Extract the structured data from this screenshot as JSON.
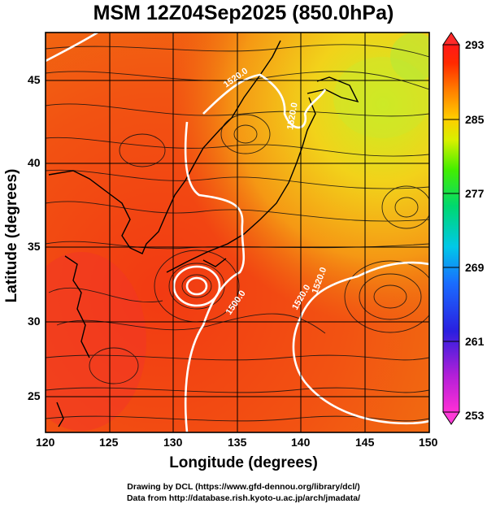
{
  "title": "MSM 12Z04Sep2025 (850.0hPa)",
  "axes": {
    "xlabel": "Longitude (degrees)",
    "ylabel": "Latitude  (degrees)",
    "xlim": [
      120,
      150
    ],
    "ylim": [
      22.4,
      47.6
    ],
    "xticks": [
      "120",
      "125",
      "130",
      "135",
      "140",
      "145",
      "150"
    ],
    "yticks": [
      "25",
      "30",
      "35",
      "40",
      "45"
    ]
  },
  "colorbar": {
    "range": [
      253,
      293
    ],
    "labels": [
      "293",
      "285",
      "277",
      "269",
      "261",
      "253"
    ],
    "stops": [
      "#ff2fd6",
      "#b21fd8",
      "#2a1fe0",
      "#1a6cff",
      "#00c8e8",
      "#00d870",
      "#44ee00",
      "#d8f000",
      "#ffcc00",
      "#ff7a00",
      "#ff2a00",
      "#ff1818"
    ]
  },
  "contour_labels": [
    "1520.0",
    "1520.0",
    "1500.0",
    "1520.0",
    "1520.0"
  ],
  "credits": [
    "Drawing by DCL (https://www.gfd-dennou.org/library/dcl/)",
    "Data from http://database.rish.kyoto-u.ac.jp/arch/jmadata/"
  ]
}
